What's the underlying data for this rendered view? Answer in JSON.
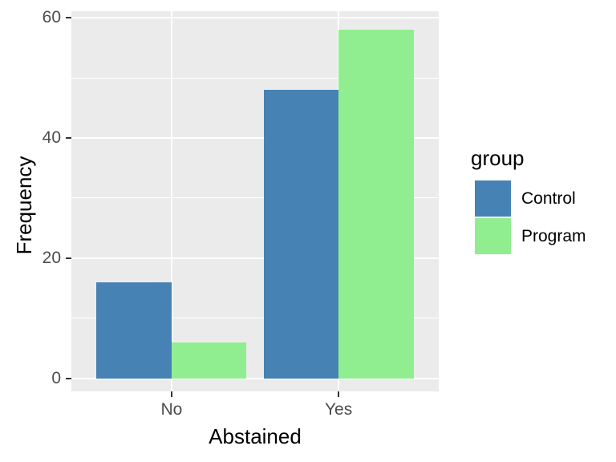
{
  "chart_data": {
    "type": "bar",
    "bar_mode": "dodge",
    "categories": [
      "No",
      "Yes"
    ],
    "series": [
      {
        "name": "Control",
        "color": "#4682B4",
        "values": [
          16,
          48
        ]
      },
      {
        "name": "Program",
        "color": "#90EE90",
        "values": [
          6,
          58
        ]
      }
    ],
    "title": "",
    "xlabel": "Abstained",
    "ylabel": "Frequency",
    "yticks": [
      0,
      20,
      40,
      60
    ],
    "yminor": [
      10,
      30,
      50
    ],
    "ylim": [
      -2.2,
      61.1
    ],
    "grid": true,
    "legend_title": "group",
    "legend_position": "right"
  },
  "style": {
    "figure_bg": "#FFFFFF",
    "panel_bg": "#EBEBEB",
    "grid_color": "#FFFFFF",
    "tick_color": "#333333",
    "tick_label_color": "#4D4D4D",
    "title_color": "#000000"
  }
}
